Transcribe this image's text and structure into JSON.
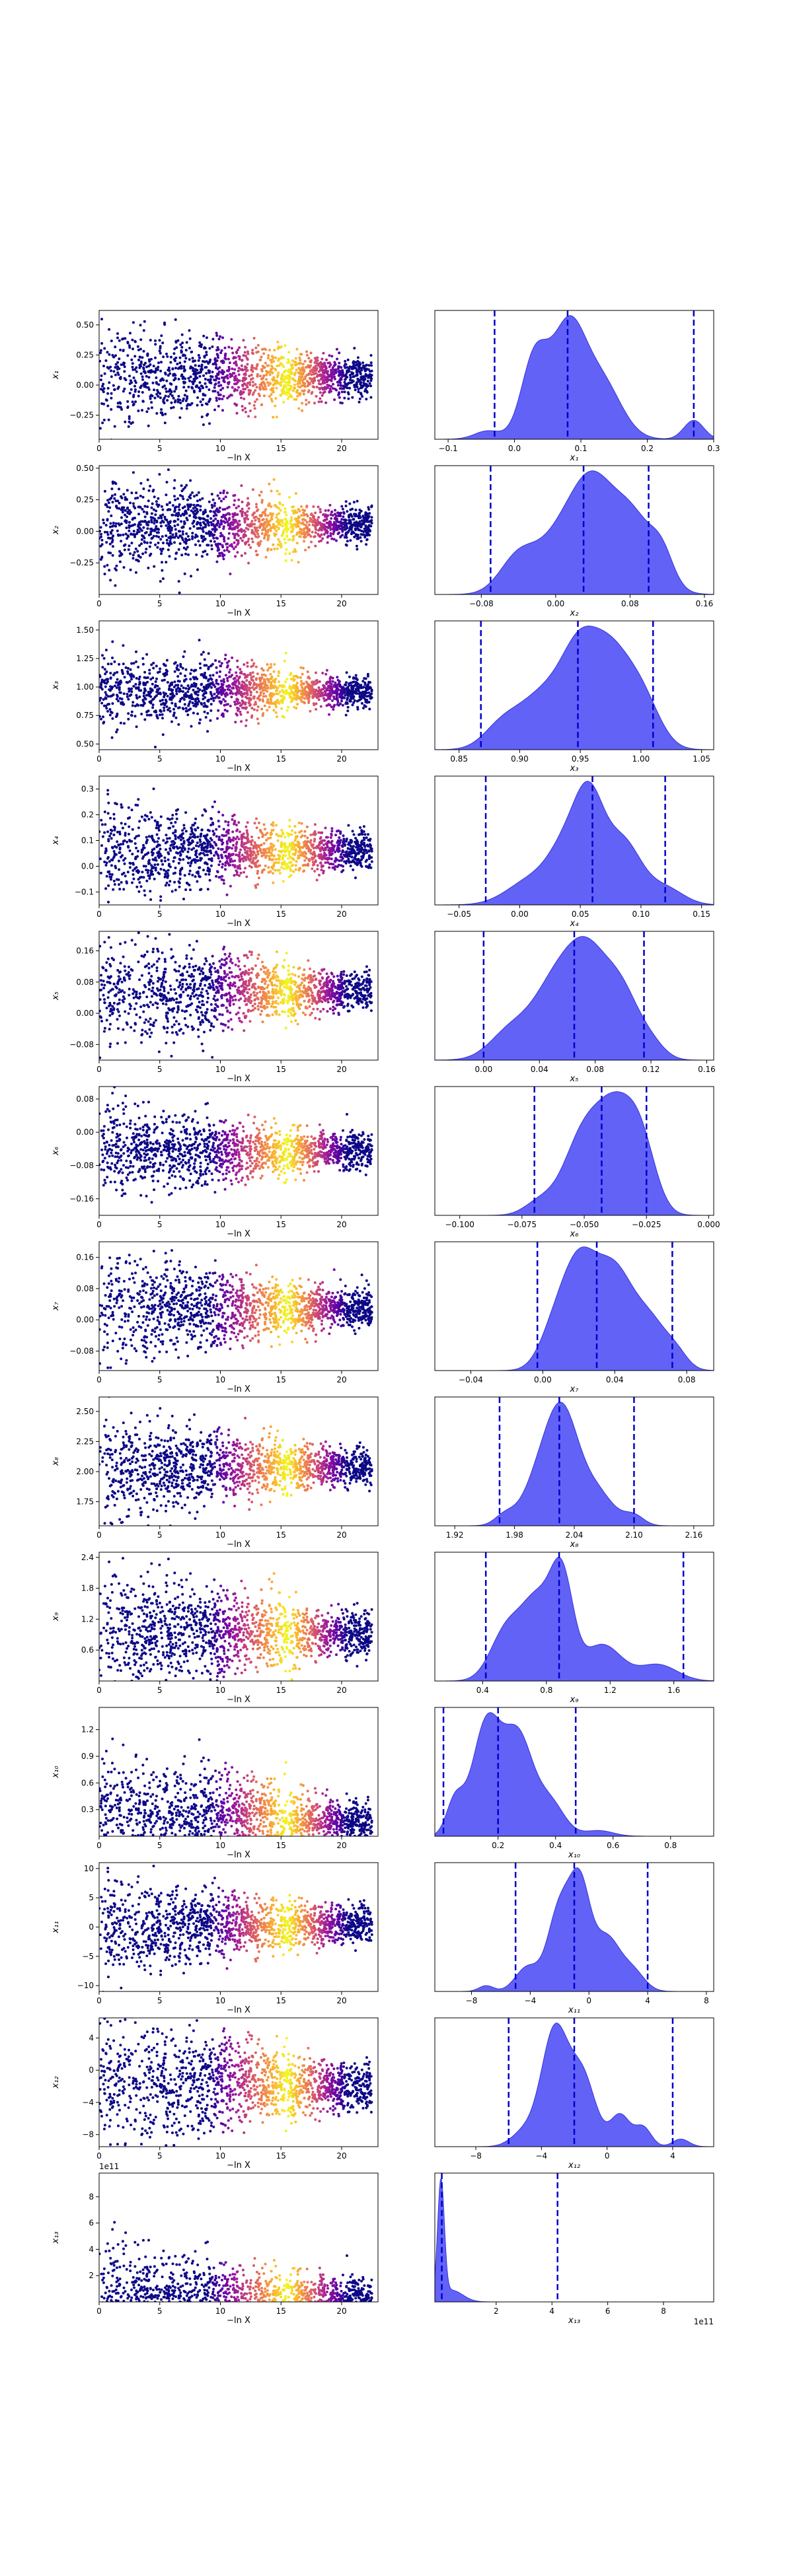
{
  "figure": {
    "scatter_xlabel": "−ln X",
    "scatter_xticks": [
      "0",
      "5",
      "10",
      "15",
      "20"
    ],
    "scatter_xlim": [
      0,
      23
    ],
    "colormap": [
      "#0d0887",
      "#5b02a3",
      "#9a179b",
      "#cb4678",
      "#eb7852",
      "#fbb32f",
      "#f0f921"
    ],
    "kde_fill": "#5a5af5",
    "quantile_line": "#0000cc"
  },
  "chart_data": [
    {
      "type": "scatter",
      "ylabel": "x₁",
      "yticks": [
        "−0.25",
        "0.00",
        "0.25",
        "0.50"
      ],
      "ylim": [
        -0.45,
        0.62
      ],
      "center": 0.06,
      "spread": 0.16,
      "final": 0.07
    },
    {
      "type": "area",
      "xlabel": "x₁",
      "xticks": [
        "−0.1",
        "0.0",
        "0.1",
        "0.2",
        "0.3"
      ],
      "xlim": [
        -0.12,
        0.3
      ],
      "quantiles": [
        -0.03,
        0.08,
        0.27
      ],
      "peaks": [
        [
          0.03,
          0.75,
          0.02
        ],
        [
          0.08,
          1.0,
          0.025
        ],
        [
          0.13,
          0.55,
          0.03
        ],
        [
          -0.04,
          0.08,
          0.02
        ],
        [
          0.27,
          0.18,
          0.015
        ]
      ]
    },
    {
      "type": "scatter",
      "ylabel": "x₂",
      "yticks": [
        "−0.25",
        "0.00",
        "0.25",
        "0.50"
      ],
      "ylim": [
        -0.5,
        0.52
      ],
      "center": 0.04,
      "spread": 0.14,
      "final": 0.05
    },
    {
      "type": "area",
      "xlabel": "x₂",
      "xticks": [
        "−0.08",
        "0.00",
        "0.08",
        "0.16"
      ],
      "xlim": [
        -0.13,
        0.17
      ],
      "quantiles": [
        -0.07,
        0.03,
        0.1
      ],
      "peaks": [
        [
          -0.04,
          0.45,
          0.02
        ],
        [
          0.01,
          0.78,
          0.025
        ],
        [
          0.04,
          0.85,
          0.02
        ],
        [
          0.08,
          1.0,
          0.025
        ],
        [
          0.115,
          0.3,
          0.012
        ]
      ]
    },
    {
      "type": "scatter",
      "ylabel": "x₃",
      "yticks": [
        "0.50",
        "0.75",
        "1.00",
        "1.25",
        "1.50"
      ],
      "ylim": [
        0.45,
        1.58
      ],
      "center": 0.97,
      "spread": 0.13,
      "final": 0.96
    },
    {
      "type": "area",
      "xlabel": "x₃",
      "xticks": [
        "0.85",
        "0.90",
        "0.95",
        "1.00",
        "1.05"
      ],
      "xlim": [
        0.83,
        1.06
      ],
      "quantiles": [
        0.868,
        0.948,
        1.01
      ],
      "peaks": [
        [
          0.885,
          0.25,
          0.015
        ],
        [
          0.92,
          0.62,
          0.02
        ],
        [
          0.95,
          0.95,
          0.015
        ],
        [
          0.975,
          0.9,
          0.015
        ],
        [
          1.0,
          0.6,
          0.015
        ]
      ]
    },
    {
      "type": "scatter",
      "ylabel": "x₄",
      "yticks": [
        "−0.1",
        "0.0",
        "0.1",
        "0.2",
        "0.3"
      ],
      "ylim": [
        -0.15,
        0.35
      ],
      "center": 0.06,
      "spread": 0.07,
      "final": 0.06
    },
    {
      "type": "area",
      "xlabel": "x₄",
      "xticks": [
        "−0.05",
        "0.00",
        "0.05",
        "0.10",
        "0.15"
      ],
      "xlim": [
        -0.07,
        0.16
      ],
      "quantiles": [
        -0.028,
        0.06,
        0.12
      ],
      "peaks": [
        [
          0.01,
          0.3,
          0.02
        ],
        [
          0.04,
          0.65,
          0.015
        ],
        [
          0.058,
          1.0,
          0.012
        ],
        [
          0.085,
          0.75,
          0.015
        ],
        [
          0.12,
          0.2,
          0.015
        ]
      ]
    },
    {
      "type": "scatter",
      "ylabel": "x₅",
      "yticks": [
        "−0.08",
        "0.00",
        "0.08",
        "0.16"
      ],
      "ylim": [
        -0.12,
        0.21
      ],
      "center": 0.05,
      "spread": 0.05,
      "final": 0.06
    },
    {
      "type": "area",
      "xlabel": "x₅",
      "xticks": [
        "0.00",
        "0.04",
        "0.08",
        "0.12",
        "0.16"
      ],
      "xlim": [
        -0.035,
        0.165
      ],
      "quantiles": [
        0.0,
        0.065,
        0.115
      ],
      "peaks": [
        [
          0.02,
          0.3,
          0.015
        ],
        [
          0.05,
          0.65,
          0.015
        ],
        [
          0.075,
          1.0,
          0.015
        ],
        [
          0.1,
          0.55,
          0.012
        ],
        [
          0.12,
          0.15,
          0.01
        ]
      ]
    },
    {
      "type": "scatter",
      "ylabel": "x₆",
      "yticks": [
        "−0.16",
        "−0.08",
        "0.00",
        "0.08"
      ],
      "ylim": [
        -0.2,
        0.11
      ],
      "center": -0.045,
      "spread": 0.04,
      "final": -0.045
    },
    {
      "type": "area",
      "xlabel": "x₆",
      "xticks": [
        "−0.100",
        "−0.075",
        "−0.050",
        "−0.025",
        "0.000"
      ],
      "xlim": [
        -0.11,
        0.002
      ],
      "quantiles": [
        -0.07,
        -0.043,
        -0.025
      ],
      "peaks": [
        [
          -0.068,
          0.15,
          0.006
        ],
        [
          -0.05,
          0.95,
          0.008
        ],
        [
          -0.037,
          1.0,
          0.007
        ],
        [
          -0.027,
          0.75,
          0.006
        ]
      ]
    },
    {
      "type": "scatter",
      "ylabel": "x₇",
      "yticks": [
        "−0.08",
        "0.00",
        "0.08",
        "0.16"
      ],
      "ylim": [
        -0.13,
        0.2
      ],
      "center": 0.03,
      "spread": 0.05,
      "final": 0.03
    },
    {
      "type": "area",
      "xlabel": "x₇",
      "xticks": [
        "−0.04",
        "0.00",
        "0.04",
        "0.08"
      ],
      "xlim": [
        -0.06,
        0.095
      ],
      "quantiles": [
        -0.003,
        0.03,
        0.072
      ],
      "peaks": [
        [
          0.005,
          0.25,
          0.008
        ],
        [
          0.02,
          1.0,
          0.01
        ],
        [
          0.04,
          0.85,
          0.01
        ],
        [
          0.06,
          0.45,
          0.01
        ],
        [
          0.075,
          0.1,
          0.006
        ]
      ]
    },
    {
      "type": "scatter",
      "ylabel": "x₈",
      "yticks": [
        "1.75",
        "2.00",
        "2.25",
        "2.50"
      ],
      "ylim": [
        1.55,
        2.62
      ],
      "center": 2.05,
      "spread": 0.15,
      "final": 2.03
    },
    {
      "type": "area",
      "xlabel": "x₈",
      "xticks": [
        "1.92",
        "1.98",
        "2.04",
        "2.10",
        "2.16"
      ],
      "xlim": [
        1.9,
        2.18
      ],
      "quantiles": [
        1.965,
        2.025,
        2.1
      ],
      "peaks": [
        [
          1.97,
          0.12,
          0.01
        ],
        [
          2.01,
          0.75,
          0.018
        ],
        [
          2.03,
          1.0,
          0.015
        ],
        [
          2.06,
          0.45,
          0.018
        ],
        [
          2.1,
          0.12,
          0.01
        ]
      ]
    },
    {
      "type": "scatter",
      "ylabel": "x₉",
      "yticks": [
        "0.6",
        "1.2",
        "1.8",
        "2.4"
      ],
      "ylim": [
        0.0,
        2.5
      ],
      "center": 0.95,
      "spread": 0.45,
      "final": 0.9
    },
    {
      "type": "area",
      "xlabel": "x₉",
      "xticks": [
        "0.4",
        "0.8",
        "1.2",
        "1.6"
      ],
      "xlim": [
        0.1,
        1.85
      ],
      "quantiles": [
        0.42,
        0.88,
        1.66
      ],
      "peaks": [
        [
          0.55,
          0.55,
          0.1
        ],
        [
          0.75,
          0.85,
          0.1
        ],
        [
          0.9,
          1.0,
          0.07
        ],
        [
          1.15,
          0.4,
          0.12
        ],
        [
          1.5,
          0.18,
          0.12
        ]
      ]
    },
    {
      "type": "scatter",
      "ylabel": "x₁₀",
      "yticks": [
        "0.3",
        "0.6",
        "0.9",
        "1.2"
      ],
      "ylim": [
        0.0,
        1.45
      ],
      "center": 0.28,
      "spread": 0.25,
      "final": 0.15
    },
    {
      "type": "area",
      "xlabel": "x₁₀",
      "xticks": [
        "0.2",
        "0.4",
        "0.6",
        "0.8"
      ],
      "xlim": [
        -0.02,
        0.95
      ],
      "quantiles": [
        0.01,
        0.2,
        0.47
      ],
      "peaks": [
        [
          0.05,
          0.3,
          0.03
        ],
        [
          0.16,
          1.0,
          0.05
        ],
        [
          0.27,
          0.85,
          0.05
        ],
        [
          0.38,
          0.3,
          0.05
        ],
        [
          0.55,
          0.05,
          0.05
        ]
      ]
    },
    {
      "type": "scatter",
      "ylabel": "x₁₁",
      "yticks": [
        "−10",
        "−5",
        "0",
        "5",
        "10"
      ],
      "ylim": [
        -11,
        11
      ],
      "center": 0.0,
      "spread": 3.0,
      "final": 0.5
    },
    {
      "type": "area",
      "xlabel": "x₁₁",
      "xticks": [
        "−8",
        "−4",
        "0",
        "4",
        "8"
      ],
      "xlim": [
        -10.5,
        8.5
      ],
      "quantiles": [
        -5.0,
        -1.0,
        4.0
      ],
      "peaks": [
        [
          -7.0,
          0.06,
          0.5
        ],
        [
          -4.2,
          0.25,
          0.8
        ],
        [
          -2.0,
          0.85,
          0.8
        ],
        [
          -0.6,
          1.0,
          0.7
        ],
        [
          1.2,
          0.55,
          0.9
        ],
        [
          3.0,
          0.2,
          0.8
        ]
      ]
    },
    {
      "type": "scatter",
      "ylabel": "x₁₂",
      "yticks": [
        "−8",
        "−4",
        "0",
        "4"
      ],
      "ylim": [
        -9.5,
        6.5
      ],
      "center": -1.5,
      "spread": 3.0,
      "final": -2.0
    },
    {
      "type": "area",
      "xlabel": "x₁₂",
      "xticks": [
        "−8",
        "−4",
        "0",
        "4"
      ],
      "xlim": [
        -10.5,
        6.5
      ],
      "quantiles": [
        -6.0,
        -2.0,
        4.0
      ],
      "peaks": [
        [
          -5.0,
          0.12,
          0.8
        ],
        [
          -3.2,
          0.9,
          0.8
        ],
        [
          -1.5,
          0.55,
          0.8
        ],
        [
          0.8,
          0.25,
          0.6
        ],
        [
          2.2,
          0.15,
          0.5
        ],
        [
          4.5,
          0.06,
          0.5
        ]
      ]
    },
    {
      "type": "scatter",
      "ylabel": "x₁₃",
      "offset": "1e11",
      "yticks": [
        "2",
        "4",
        "6",
        "8"
      ],
      "ylim": [
        0.0,
        9.8
      ],
      "center": 0.3,
      "spread": 1.5,
      "final": 0.2
    },
    {
      "type": "area",
      "xlabel": "x₁₃",
      "offset": "1e11",
      "xticks": [
        "2",
        "4",
        "6",
        "8"
      ],
      "xlim": [
        -0.2,
        9.8
      ],
      "quantiles": [
        0.05,
        4.2
      ],
      "peaks": [
        [
          0.02,
          1.0,
          0.12
        ],
        [
          0.4,
          0.1,
          0.4
        ]
      ]
    }
  ]
}
